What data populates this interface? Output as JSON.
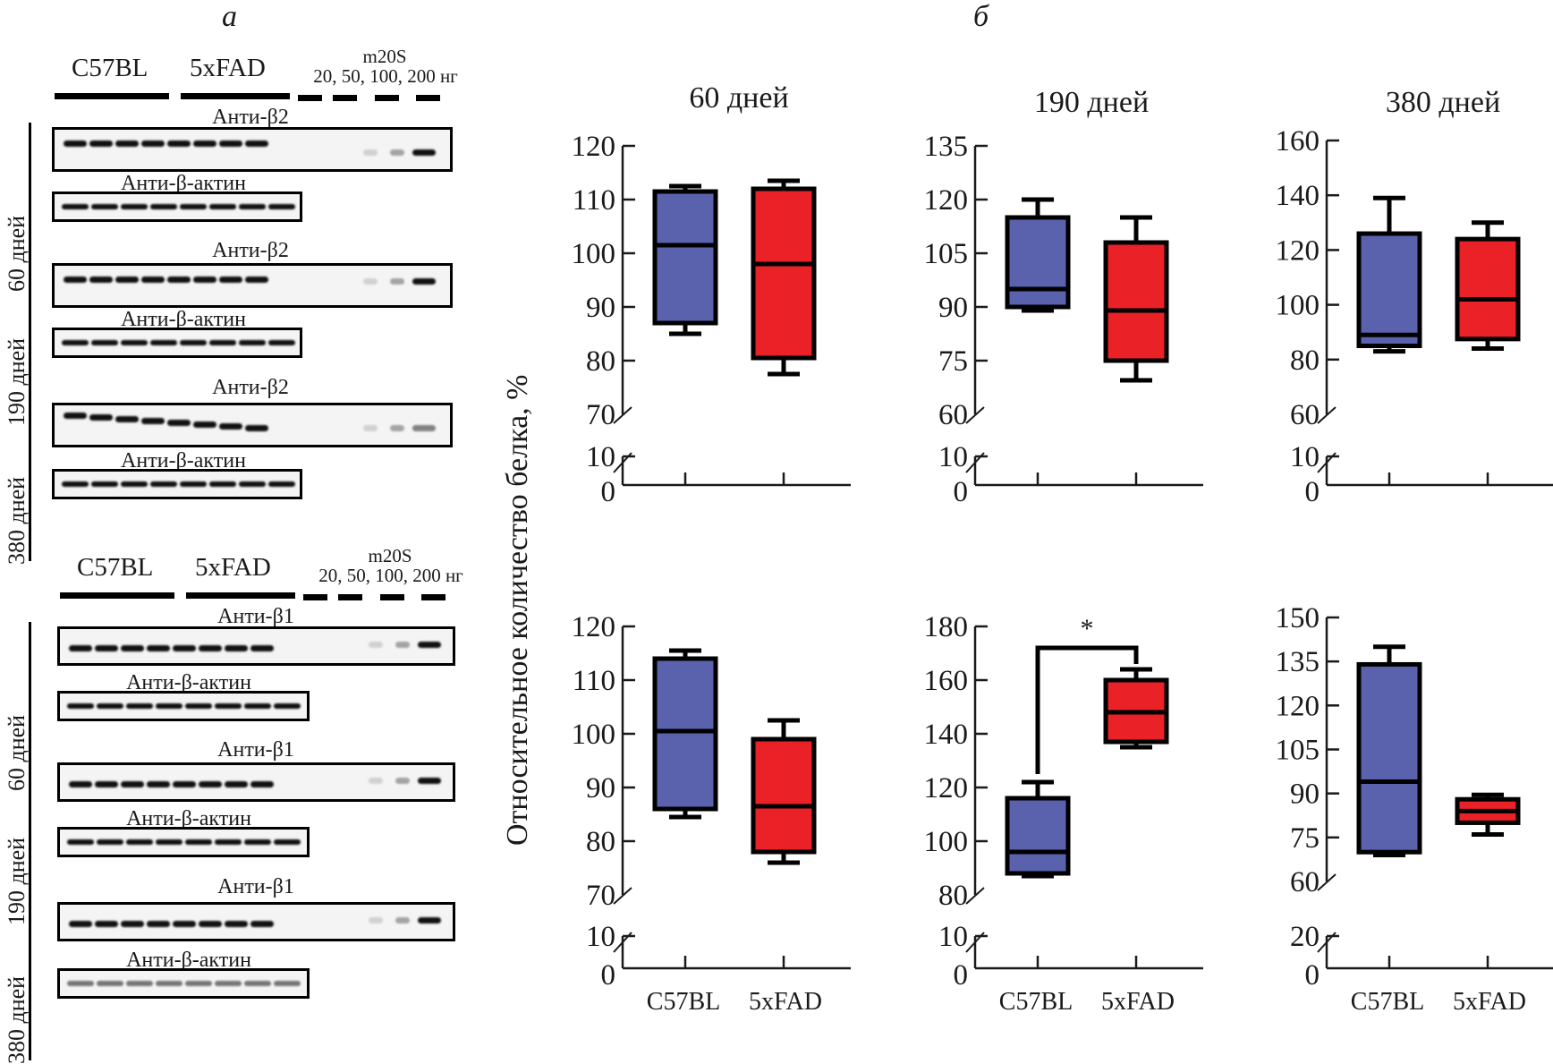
{
  "panel_a": {
    "letter": "а",
    "groups": [
      {
        "header": {
          "c57": "C57BL",
          "fad": "5xFAD",
          "m20s_title": "m20S",
          "m20s_amounts": "20, 50, 100, 200 нг"
        },
        "blocks": [
          {
            "age": "60 дней",
            "target": "Анти-β2",
            "control": "Анти-β-актин"
          },
          {
            "age": "190 дней",
            "target": "Анти-β2",
            "control": "Анти-β-актин"
          },
          {
            "age": "380 дней",
            "target": "Анти-β2",
            "control": "Анти-β-актин"
          }
        ]
      },
      {
        "header": {
          "c57": "C57BL",
          "fad": "5xFAD",
          "m20s_title": "m20S",
          "m20s_amounts": "20, 50, 100, 200 нг"
        },
        "blocks": [
          {
            "age": "60 дней",
            "target": "Анти-β1",
            "control": "Анти-β-актин"
          },
          {
            "age": "190 дней",
            "target": "Анти-β1",
            "control": "Анти-β-актин"
          },
          {
            "age": "380 дней",
            "target": "Анти-β1",
            "control": "Анти-β-актин"
          }
        ]
      }
    ]
  },
  "panel_b": {
    "letter": "б",
    "ylabel": "Относительное количество белка, %",
    "colors": {
      "c57": "#5a62ad",
      "fad": "#ea2127",
      "outline": "#000000"
    }
  },
  "chart_data": [
    {
      "type": "boxplot",
      "title": "60 дней",
      "row": "β2",
      "xlabel": "",
      "ylabel": "Относительное количество белка, %",
      "categories": [
        "C57BL",
        "5xFAD"
      ],
      "show_category_labels": false,
      "yticks_upper": [
        70,
        80,
        90,
        100,
        110,
        120
      ],
      "yticks_lower": [
        0,
        10
      ],
      "ylim_upper": [
        70,
        120
      ],
      "ylim_lower": [
        0,
        10
      ],
      "axis_break": true,
      "series": [
        {
          "name": "C57BL",
          "min": 85,
          "q1": 87,
          "median": 101.5,
          "q3": 111.5,
          "max": 112.5
        },
        {
          "name": "5xFAD",
          "min": 77.5,
          "q1": 80.5,
          "median": 98,
          "q3": 112,
          "max": 113.5
        }
      ],
      "significance": null
    },
    {
      "type": "boxplot",
      "title": "190 дней",
      "row": "β2",
      "xlabel": "",
      "ylabel": "",
      "categories": [
        "C57BL",
        "5xFAD"
      ],
      "show_category_labels": false,
      "yticks_upper": [
        60,
        75,
        90,
        105,
        120,
        135
      ],
      "yticks_lower": [
        0,
        10
      ],
      "ylim_upper": [
        60,
        135
      ],
      "ylim_lower": [
        0,
        10
      ],
      "axis_break": true,
      "series": [
        {
          "name": "C57BL",
          "min": 89,
          "q1": 90,
          "median": 95,
          "q3": 115,
          "max": 120
        },
        {
          "name": "5xFAD",
          "min": 69.5,
          "q1": 75,
          "median": 89,
          "q3": 108,
          "max": 115
        }
      ],
      "significance": null
    },
    {
      "type": "boxplot",
      "title": "380 дней",
      "row": "β2",
      "xlabel": "",
      "ylabel": "",
      "categories": [
        "C57BL",
        "5xFAD"
      ],
      "show_category_labels": false,
      "yticks_upper": [
        60,
        80,
        100,
        120,
        140,
        160
      ],
      "yticks_lower": [
        0,
        10
      ],
      "ylim_upper": [
        60,
        160
      ],
      "ylim_lower": [
        0,
        10
      ],
      "axis_break": true,
      "series": [
        {
          "name": "C57BL",
          "min": 83,
          "q1": 85,
          "median": 89,
          "q3": 126,
          "max": 139
        },
        {
          "name": "5xFAD",
          "min": 84,
          "q1": 87.5,
          "median": 102,
          "q3": 124,
          "max": 130
        }
      ],
      "significance": null
    },
    {
      "type": "boxplot",
      "title": "",
      "row": "β1",
      "xlabel": "",
      "ylabel": "",
      "categories": [
        "C57BL",
        "5xFAD"
      ],
      "show_category_labels": true,
      "yticks_upper": [
        70,
        80,
        90,
        100,
        110,
        120
      ],
      "yticks_lower": [
        0,
        10
      ],
      "ylim_upper": [
        70,
        120
      ],
      "ylim_lower": [
        0,
        10
      ],
      "axis_break": true,
      "series": [
        {
          "name": "C57BL",
          "min": 84.5,
          "q1": 86,
          "median": 100.5,
          "q3": 114,
          "max": 115.5
        },
        {
          "name": "5xFAD",
          "min": 76,
          "q1": 78,
          "median": 86.5,
          "q3": 99,
          "max": 102.5
        }
      ],
      "significance": null
    },
    {
      "type": "boxplot",
      "title": "",
      "row": "β1",
      "xlabel": "",
      "ylabel": "",
      "categories": [
        "C57BL",
        "5xFAD"
      ],
      "show_category_labels": true,
      "yticks_upper": [
        80,
        100,
        120,
        140,
        160,
        180
      ],
      "yticks_lower": [
        0,
        10
      ],
      "ylim_upper": [
        80,
        180
      ],
      "ylim_lower": [
        0,
        10
      ],
      "axis_break": true,
      "series": [
        {
          "name": "C57BL",
          "min": 87,
          "q1": 88,
          "median": 96,
          "q3": 116,
          "max": 122
        },
        {
          "name": "5xFAD",
          "min": 135,
          "q1": 137,
          "median": 148,
          "q3": 160,
          "max": 164
        }
      ],
      "significance": {
        "label": "*",
        "bracket_level": 172,
        "left_end": 125,
        "right_end": 166
      }
    },
    {
      "type": "boxplot",
      "title": "",
      "row": "β1",
      "xlabel": "",
      "ylabel": "",
      "categories": [
        "C57BL",
        "5xFAD"
      ],
      "show_category_labels": true,
      "yticks_upper": [
        60,
        75,
        90,
        105,
        120,
        135,
        150
      ],
      "yticks_lower": [
        0,
        20
      ],
      "ylim_upper": [
        60,
        150
      ],
      "ylim_lower": [
        0,
        20
      ],
      "axis_break": true,
      "series": [
        {
          "name": "C57BL",
          "min": 69,
          "q1": 70,
          "median": 94,
          "q3": 134,
          "max": 140
        },
        {
          "name": "5xFAD",
          "min": 76,
          "q1": 80,
          "median": 84,
          "q3": 88,
          "max": 89.5
        }
      ],
      "significance": null
    }
  ]
}
